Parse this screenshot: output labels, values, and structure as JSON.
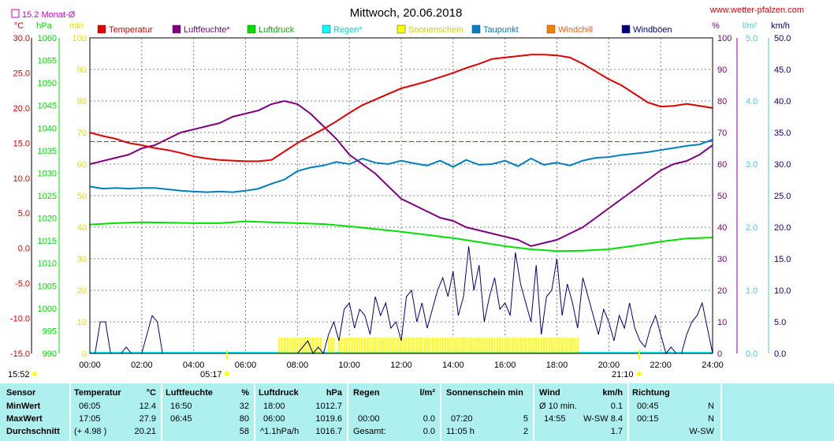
{
  "site": "www.wetter-pfalzen.com",
  "colors": {
    "temperatur": "#e00000",
    "luftfeuchte": "#800080",
    "luftdruck": "#00e000",
    "regen": "#00ffff",
    "sonnenschein": "#ffff00",
    "taupunkt": "#0080c0",
    "windchill": "#ff8000",
    "windboeen": "#000080",
    "monat": "#d000d0",
    "rain_axis": "#40d0d0",
    "grid": "#808080",
    "table_bg": "#aef0f0"
  },
  "chart_data": {
    "type": "line",
    "title": "Mittwoch, 20.06.2018",
    "month_avg_label": "15.2 Monat-Ø",
    "month_avg_value": 15.2,
    "units": {
      "temp": "°C",
      "pressure": "hPa",
      "minutes": "min",
      "humidity": "%",
      "rain": "l/m²",
      "wind": "km/h"
    },
    "axes": {
      "temp": {
        "ticks": [
          "30.0",
          "25.0",
          "20.0",
          "15.0",
          "10.0",
          "5.0",
          "0.0",
          "-5.0",
          "-10.0",
          "-15.0"
        ],
        "range": [
          -15,
          30
        ]
      },
      "pressure": {
        "ticks": [
          "1060",
          "1055",
          "1050",
          "1045",
          "1040",
          "1035",
          "1030",
          "1025",
          "1020",
          "1015",
          "1010",
          "1005",
          "1000",
          "995",
          "990"
        ],
        "range": [
          990,
          1060
        ]
      },
      "minutes": {
        "ticks": [
          "100",
          "90",
          "80",
          "70",
          "60",
          "50",
          "40",
          "30",
          "20",
          "10",
          "0"
        ],
        "range": [
          0,
          100
        ]
      },
      "humidity": {
        "ticks": [
          "100",
          "90",
          "80",
          "70",
          "60",
          "50",
          "40",
          "30",
          "20",
          "10",
          "0"
        ],
        "range": [
          0,
          100
        ]
      },
      "rain": {
        "ticks": [
          "5.0",
          "4.0",
          "3.0",
          "2.0",
          "1.0",
          "0.0"
        ],
        "range": [
          0,
          5
        ]
      },
      "wind": {
        "ticks": [
          "50.0",
          "45.0",
          "40.0",
          "35.0",
          "30.0",
          "25.0",
          "20.0",
          "15.0",
          "10.0",
          "5.0",
          "0.0"
        ],
        "range": [
          0,
          50
        ]
      }
    },
    "x_ticks": [
      "00:00",
      "02:00",
      "04:00",
      "06:00",
      "08:00",
      "10:00",
      "12:00",
      "14:00",
      "16:00",
      "18:00",
      "20:00",
      "22:00",
      "24:00"
    ],
    "legend": [
      "Temperatur",
      "Luftfeuchte*",
      "Luftdruck",
      "Regen*",
      "Sonnenschein",
      "Taupunkt",
      "Windchill",
      "Windböen"
    ],
    "sun_markers": {
      "first": "15:52",
      "sunrise": "05:17",
      "sunset": "21:10"
    },
    "series": [
      {
        "name": "Temperatur",
        "axis": "temp",
        "x": [
          0,
          0.5,
          1,
          1.5,
          2,
          2.5,
          3,
          3.5,
          4,
          4.5,
          5,
          5.5,
          6,
          6.5,
          7,
          7.5,
          8,
          8.5,
          9,
          9.5,
          10,
          10.5,
          11,
          11.5,
          12,
          12.5,
          13,
          13.5,
          14,
          14.5,
          15,
          15.5,
          16,
          16.5,
          17,
          17.5,
          18,
          18.5,
          19,
          19.5,
          20,
          20.5,
          21,
          21.5,
          22,
          22.5,
          23,
          23.5,
          24
        ],
        "y": [
          16.5,
          16.0,
          15.6,
          15.0,
          14.7,
          14.3,
          14.0,
          13.6,
          13.1,
          12.8,
          12.6,
          12.5,
          12.4,
          12.4,
          12.6,
          13.8,
          15.0,
          16.0,
          17.0,
          18.1,
          19.3,
          20.4,
          21.2,
          22.0,
          22.8,
          23.3,
          23.8,
          24.4,
          25.0,
          25.7,
          26.3,
          27.0,
          27.2,
          27.4,
          27.6,
          27.6,
          27.5,
          27.2,
          26.3,
          25.2,
          24.1,
          23.2,
          22.0,
          20.8,
          20.2,
          20.3,
          20.6,
          20.3,
          20.0
        ]
      },
      {
        "name": "Luftfeuchte*",
        "axis": "humidity",
        "x": [
          0,
          0.5,
          1,
          1.5,
          2,
          2.5,
          3,
          3.5,
          4,
          4.5,
          5,
          5.5,
          6,
          6.5,
          7,
          7.5,
          8,
          8.5,
          9,
          9.5,
          10,
          10.5,
          11,
          11.5,
          12,
          12.5,
          13,
          13.5,
          14,
          14.5,
          15,
          15.5,
          16,
          16.5,
          17,
          17.5,
          18,
          18.5,
          19,
          19.5,
          20,
          20.5,
          21,
          21.5,
          22,
          22.5,
          23,
          23.5,
          24
        ],
        "y": [
          60,
          61,
          62,
          63,
          65,
          66,
          68,
          70,
          71,
          72,
          73,
          75,
          76,
          77,
          79,
          80,
          79,
          76,
          72,
          68,
          63,
          60,
          57,
          53,
          49,
          47,
          45,
          43,
          42,
          40,
          39,
          38,
          37,
          36,
          34,
          35,
          36,
          38,
          40,
          43,
          46,
          49,
          52,
          55,
          58,
          60,
          61,
          63,
          66
        ]
      },
      {
        "name": "Luftdruck",
        "axis": "pressure",
        "x": [
          0,
          1,
          2,
          3,
          4,
          5,
          6,
          7,
          8,
          9,
          10,
          11,
          12,
          13,
          14,
          15,
          16,
          17,
          18,
          19,
          20,
          21,
          22,
          23,
          24
        ],
        "y": [
          1018.6,
          1018.9,
          1019.1,
          1019.0,
          1018.9,
          1018.9,
          1019.3,
          1019.1,
          1018.9,
          1018.7,
          1018.2,
          1017.6,
          1017.0,
          1016.3,
          1015.6,
          1014.7,
          1013.8,
          1013.1,
          1012.7,
          1012.8,
          1013.1,
          1013.9,
          1014.8,
          1015.5,
          1015.7
        ]
      },
      {
        "name": "Taupunkt",
        "axis": "temp",
        "x": [
          0,
          0.5,
          1,
          1.5,
          2,
          2.5,
          3,
          3.5,
          4,
          4.5,
          5,
          5.5,
          6,
          6.5,
          7,
          7.5,
          8,
          8.5,
          9,
          9.5,
          10,
          10.5,
          11,
          11.5,
          12,
          12.5,
          13,
          13.5,
          14,
          14.5,
          15,
          15.5,
          16,
          16.5,
          17,
          17.5,
          18,
          18.5,
          19,
          19.5,
          20,
          20.5,
          21,
          21.5,
          22,
          22.5,
          23,
          23.5,
          24
        ],
        "y": [
          8.8,
          8.5,
          8.6,
          8.5,
          8.6,
          8.6,
          8.4,
          8.2,
          8.1,
          8.0,
          8.1,
          8.0,
          8.2,
          8.5,
          9.2,
          9.8,
          11.0,
          11.5,
          11.8,
          12.3,
          12.0,
          12.8,
          12.2,
          12.0,
          12.5,
          12.1,
          11.8,
          12.5,
          11.6,
          12.6,
          11.9,
          12.0,
          12.5,
          11.7,
          12.8,
          11.9,
          12.2,
          11.8,
          12.5,
          12.9,
          13.0,
          13.3,
          13.5,
          13.7,
          14.0,
          14.3,
          14.6,
          14.8,
          15.5
        ]
      },
      {
        "name": "Windböen",
        "axis": "wind",
        "x": [
          0,
          0.2,
          0.4,
          0.6,
          0.8,
          1,
          1.2,
          1.4,
          1.6,
          1.8,
          2,
          2.2,
          2.4,
          2.6,
          2.8,
          3,
          4,
          5,
          6,
          7,
          8,
          8.2,
          8.4,
          8.6,
          8.8,
          9,
          9.2,
          9.4,
          9.6,
          9.8,
          10,
          10.2,
          10.4,
          10.6,
          10.8,
          11,
          11.2,
          11.4,
          11.6,
          11.8,
          12,
          12.2,
          12.4,
          12.6,
          12.8,
          13,
          13.2,
          13.4,
          13.6,
          13.8,
          14,
          14.2,
          14.4,
          14.6,
          14.8,
          15,
          15.2,
          15.4,
          15.6,
          15.8,
          16,
          16.2,
          16.4,
          16.6,
          16.8,
          17,
          17.2,
          17.4,
          17.6,
          17.8,
          18,
          18.2,
          18.4,
          18.6,
          18.8,
          19,
          19.2,
          19.4,
          19.6,
          19.8,
          20,
          20.2,
          20.4,
          20.6,
          20.8,
          21,
          21.2,
          21.4,
          21.6,
          21.8,
          22,
          22.2,
          22.4,
          22.6,
          22.8,
          23,
          23.2,
          23.4,
          23.6,
          23.8,
          24
        ],
        "y": [
          0,
          0,
          5,
          5,
          0,
          0,
          0,
          1,
          0,
          0,
          0,
          3,
          6,
          5,
          0,
          0,
          0,
          0,
          0,
          0,
          0,
          1,
          2,
          0,
          1,
          0,
          3,
          5,
          2,
          7,
          8,
          4,
          7,
          6,
          3,
          9,
          6,
          8,
          4,
          5,
          2,
          9,
          10,
          5,
          8,
          4,
          7,
          10,
          12,
          9,
          13,
          6,
          9,
          17,
          10,
          14,
          5,
          9,
          12,
          7,
          8,
          6,
          16,
          11,
          8,
          5,
          14,
          3,
          9,
          10,
          15,
          6,
          11,
          8,
          4,
          12,
          9,
          6,
          3,
          7,
          5,
          2,
          6,
          4,
          8,
          4,
          2,
          1,
          4,
          6,
          3,
          0,
          1,
          0,
          0,
          3,
          5,
          6,
          8,
          4,
          0
        ]
      }
    ],
    "sunshine_spans": [
      [
        7.3,
        8.9
      ],
      [
        9.2,
        9.4
      ],
      [
        9.6,
        15.4
      ],
      [
        15.5,
        18.9
      ]
    ]
  },
  "stats": {
    "headers": {
      "sensor": "Sensor",
      "temp": "Temperatur",
      "temp_unit": "°C",
      "humid": "Luftfeuchte",
      "humid_unit": "%",
      "press": "Luftdruck",
      "press_unit": "hPa",
      "rain": "Regen",
      "rain_unit": "l/m²",
      "sun": "Sonnenschein min",
      "wind": "Wind",
      "wind_unit": "km/h",
      "dir": "Richtung"
    },
    "rows": [
      {
        "label": "MinWert",
        "t_time": "06:05",
        "t_val": "12.4",
        "h_time": "16:50",
        "h_val": "32",
        "p_time": "18:00",
        "p_val": "1012.7",
        "r_time": "",
        "r_val": "",
        "s_time": "",
        "s_val": "",
        "w_time": "Ø 10 min.",
        "w_val": "0.1",
        "d_time": "00:45",
        "d_val": "N"
      },
      {
        "label": "MaxWert",
        "t_time": "17:05",
        "t_val": "27.9",
        "h_time": "06:45",
        "h_val": "80",
        "p_time": "06:00",
        "p_val": "1019.6",
        "r_time": "00:00",
        "r_val": "0.0",
        "s_time": "07:20",
        "s_val": "5",
        "w_time": "14:55",
        "w_val": "W-SW 8.4",
        "d_time": "00:15",
        "d_val": "N"
      },
      {
        "label": "Durchschnitt",
        "t_time": "(+ 4.98 )",
        "t_val": "20.21",
        "h_time": "",
        "h_val": "58",
        "p_time": "^1.1hPa/h",
        "p_val": "1016.7",
        "r_time": "Gesamt:",
        "r_val": "0.0",
        "s_time": "11:05 h",
        "s_val": "2",
        "w_time": "",
        "w_val": "1.7",
        "d_time": "",
        "d_val": "W-SW"
      }
    ]
  }
}
